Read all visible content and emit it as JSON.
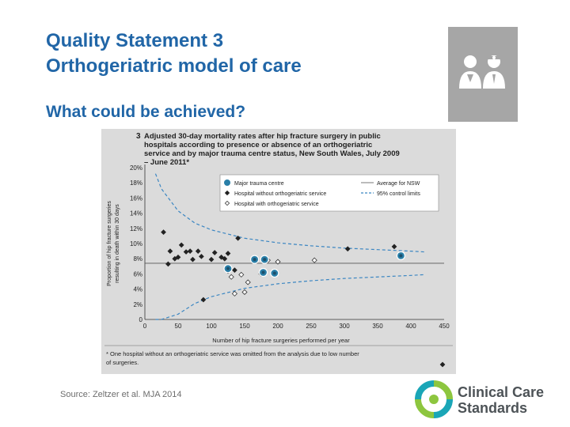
{
  "slide": {
    "title_line1": "Quality Statement 3",
    "title_line2": "Orthogeriatric model of care",
    "subtitle": "What could be achieved?",
    "source": "Source: Zeltzer et al. MJA 2014",
    "brand_line1": "Clinical Care",
    "brand_line2": "Standards",
    "icon": "two-clinicians-icon"
  },
  "colors": {
    "title": "#2166a7",
    "figure_bg": "#dbdbdb",
    "trauma_fill": "#2a7fa8",
    "control_limit": "#3b86c2",
    "logo_green": "#8dc63f",
    "logo_teal": "#1aa6b7"
  },
  "chart_data": {
    "type": "scatter",
    "number": "3",
    "title": "Adjusted 30-day mortality rates after hip fracture surgery in public hospitals according to presence or absence of an orthogeriatric service and by major trauma centre status, New South Wales, July 2009 – June 2011*",
    "xlabel": "Number of hip fracture surgeries performed per year",
    "ylabel": "Proportion of hip fracture surgeries resulting in death within 30 days",
    "xlim": [
      0,
      450
    ],
    "ylim": [
      0,
      20
    ],
    "x_ticks": [
      0,
      50,
      100,
      150,
      200,
      250,
      300,
      350,
      400,
      450
    ],
    "y_ticks": [
      "0",
      "2%",
      "4%",
      "6%",
      "8%",
      "10%",
      "12%",
      "14%",
      "16%",
      "18%",
      "20%"
    ],
    "grid": false,
    "legend_position": "top-right",
    "legend": {
      "trauma": "Major trauma centre",
      "without": "Hospital without orthogeriatric service",
      "with": "Hospital with orthogeriatric service",
      "average": "Average for NSW",
      "limits": "95% control limits"
    },
    "average": 7.4,
    "series": [
      {
        "name": "Major trauma centre",
        "points": [
          [
            125,
            6.7
          ],
          [
            165,
            7.9
          ],
          [
            180,
            7.9
          ],
          [
            178,
            6.2
          ],
          [
            195,
            6.1
          ],
          [
            385,
            8.4
          ]
        ]
      },
      {
        "name": "Hospital without orthogeriatric service",
        "points": [
          [
            28,
            11.5
          ],
          [
            35,
            7.3
          ],
          [
            38,
            9.0
          ],
          [
            45,
            8.0
          ],
          [
            50,
            8.2
          ],
          [
            55,
            9.8
          ],
          [
            62,
            8.9
          ],
          [
            68,
            9.0
          ],
          [
            72,
            7.9
          ],
          [
            80,
            9.0
          ],
          [
            85,
            8.3
          ],
          [
            88,
            2.6
          ],
          [
            100,
            7.9
          ],
          [
            105,
            8.8
          ],
          [
            115,
            8.2
          ],
          [
            120,
            8.0
          ],
          [
            125,
            8.7
          ],
          [
            135,
            6.5
          ],
          [
            140,
            10.7
          ],
          [
            305,
            9.3
          ],
          [
            375,
            9.6
          ]
        ]
      },
      {
        "name": "Hospital with orthogeriatric service",
        "points": [
          [
            125,
            6.4
          ],
          [
            130,
            5.6
          ],
          [
            135,
            3.4
          ],
          [
            145,
            5.9
          ],
          [
            150,
            3.6
          ],
          [
            155,
            4.9
          ],
          [
            175,
            6.0
          ],
          [
            185,
            7.8
          ],
          [
            200,
            7.6
          ],
          [
            255,
            7.8
          ]
        ]
      }
    ],
    "control_limits": {
      "x": [
        16,
        25,
        50,
        75,
        100,
        150,
        200,
        250,
        300,
        350,
        400,
        420
      ],
      "upper": [
        19.2,
        17.2,
        14.3,
        12.7,
        11.8,
        10.7,
        10.1,
        9.7,
        9.4,
        9.2,
        9.0,
        8.9
      ],
      "lower": [
        0,
        0,
        0.7,
        2.1,
        3.0,
        4.1,
        4.7,
        5.1,
        5.4,
        5.6,
        5.8,
        5.9
      ]
    },
    "footnote": "* One hospital without an orthogeriatric service was omitted from the analysis due to low number of surgeries."
  }
}
